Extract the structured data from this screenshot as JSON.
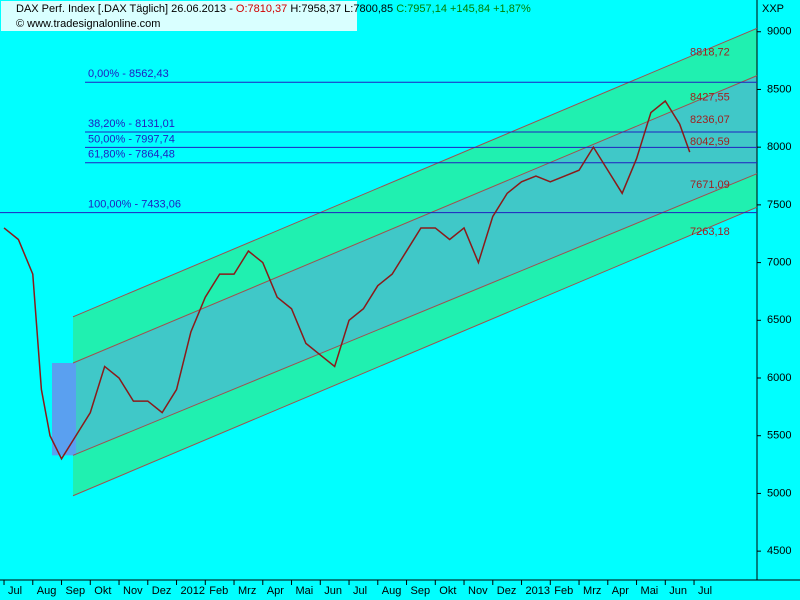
{
  "chart_data": {
    "type": "line",
    "header": {
      "title": "DAX Perf. Index [.DAX  Täglich] 26.06.2013 -",
      "open": "O:7810,37",
      "high_low": "H:7958,37 L:7800,85",
      "close": "C:7957,14 +145,84 +1,87%",
      "source": "© www.tradesignalonline.com",
      "axis_label": "XXP"
    },
    "xlim": [
      -0.14,
      26.19
    ],
    "ylim": [
      4250,
      9275
    ],
    "xticks": [
      {
        "value": 0,
        "label": "Jul"
      },
      {
        "value": 1,
        "label": "Aug"
      },
      {
        "value": 2,
        "label": "Sep"
      },
      {
        "value": 3,
        "label": "Okt"
      },
      {
        "value": 4,
        "label": "Nov"
      },
      {
        "value": 5,
        "label": "Dez"
      },
      {
        "value": 6,
        "label": "2012"
      },
      {
        "value": 7,
        "label": "Feb"
      },
      {
        "value": 8,
        "label": "Mrz"
      },
      {
        "value": 9,
        "label": "Apr"
      },
      {
        "value": 10,
        "label": "Mai"
      },
      {
        "value": 11,
        "label": "Jun"
      },
      {
        "value": 12,
        "label": "Jul"
      },
      {
        "value": 13,
        "label": "Aug"
      },
      {
        "value": 14,
        "label": "Sep"
      },
      {
        "value": 15,
        "label": "Okt"
      },
      {
        "value": 16,
        "label": "Nov"
      },
      {
        "value": 17,
        "label": "Dez"
      },
      {
        "value": 18,
        "label": "2013"
      },
      {
        "value": 19,
        "label": "Feb"
      },
      {
        "value": 20,
        "label": "Mrz"
      },
      {
        "value": 21,
        "label": "Apr"
      },
      {
        "value": 22,
        "label": "Mai"
      },
      {
        "value": 23,
        "label": "Jun"
      },
      {
        "value": 24,
        "label": "Jul"
      }
    ],
    "yticks": [
      4500,
      5000,
      5500,
      6000,
      6500,
      7000,
      7500,
      8000,
      8500,
      9000
    ],
    "series": [
      {
        "name": "DAX",
        "color": "#8b1a1a",
        "x": [
          0,
          0.5,
          1,
          1.3,
          1.6,
          2,
          2.5,
          3,
          3.5,
          4,
          4.5,
          5,
          5.5,
          6,
          6.5,
          7,
          7.5,
          8,
          8.5,
          9,
          9.5,
          10,
          10.5,
          11,
          11.5,
          12,
          12.5,
          13,
          13.5,
          14,
          14.5,
          15,
          15.5,
          16,
          16.5,
          17,
          17.5,
          18,
          18.5,
          19,
          19.5,
          20,
          20.5,
          21,
          21.5,
          22,
          22.5,
          23,
          23.5,
          23.85
        ],
        "values": [
          7300,
          7200,
          6900,
          5900,
          5500,
          5300,
          5500,
          5700,
          6100,
          6000,
          5800,
          5800,
          5700,
          5900,
          6400,
          6700,
          6900,
          6900,
          7100,
          7000,
          6700,
          6600,
          6300,
          6200,
          6100,
          6500,
          6600,
          6800,
          6900,
          7100,
          7300,
          7300,
          7200,
          7300,
          7000,
          7400,
          7600,
          7700,
          7750,
          7700,
          7750,
          7800,
          8000,
          7800,
          7600,
          7900,
          8300,
          8400,
          8200,
          7957.14
        ]
      }
    ],
    "channels": [
      {
        "x": [
          2.4,
          26.19
        ],
        "values": [
          6530,
          9030
        ]
      },
      {
        "x": [
          2.4,
          26.19
        ],
        "values": [
          6130,
          8620
        ]
      },
      {
        "x": [
          2.4,
          26.19
        ],
        "values": [
          5330,
          7770
        ]
      },
      {
        "x": [
          2.4,
          26.19
        ],
        "values": [
          4980,
          7480
        ]
      }
    ],
    "fib_levels": [
      {
        "value": 8562.43,
        "label": "0,00% - 8562,43"
      },
      {
        "value": 8131.01,
        "label": "38,20% - 8131,01"
      },
      {
        "value": 7997.74,
        "label": "50,00% - 7997,74"
      },
      {
        "value": 7864.48,
        "label": "61,80% - 7864,48"
      },
      {
        "value": 7433.06,
        "label": "100,00% - 7433,06"
      }
    ],
    "channel_labels": [
      {
        "value": 8818.72,
        "label": "8818,72"
      },
      {
        "value": 8427.55,
        "label": "8427,55"
      },
      {
        "value": 8236.07,
        "label": "8236,07"
      },
      {
        "value": 8042.59,
        "label": "8042,59"
      },
      {
        "value": 7671.09,
        "label": "7671,09"
      },
      {
        "value": 7263.18,
        "label": "7263,18"
      }
    ]
  }
}
